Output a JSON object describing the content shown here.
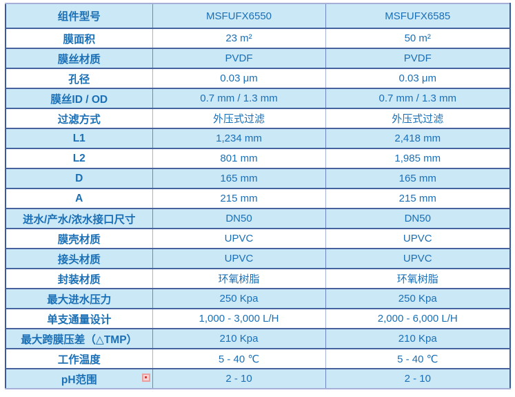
{
  "theme": {
    "text": "#1a6fb5",
    "rowblue": "#cbe8f7",
    "rowwhite": "#ffffff",
    "hborder": "#46629e",
    "vborder_white": "#a6b0d8",
    "vborder_blue": "#6e86c2",
    "outer_side": "#3a5aa0",
    "outer_topbottom": "#a4aed6",
    "icon_border": "#eb9f9f",
    "icon_bg": "#f6d2d2",
    "icon_dot": "#c4403e"
  },
  "icons": {
    "anchor_marker": "image-anchor-icon"
  },
  "table": {
    "rows": [
      {
        "label": "组件型号",
        "values": [
          "MSFUFX6550",
          "MSFUFX6585"
        ]
      },
      {
        "label": "膜面积",
        "values": [
          "23 m²",
          "50 m²"
        ]
      },
      {
        "label": "膜丝材质",
        "values": [
          "PVDF",
          "PVDF"
        ]
      },
      {
        "label": "孔径",
        "values": [
          "0.03 μm",
          "0.03 μm"
        ]
      },
      {
        "label": "膜丝ID / OD",
        "values": [
          "0.7 mm / 1.3 mm",
          "0.7 mm / 1.3 mm"
        ]
      },
      {
        "label": "过滤方式",
        "values": [
          "外压式过滤",
          "外压式过滤"
        ]
      },
      {
        "label": "L1",
        "values": [
          "1,234 mm",
          "2,418 mm"
        ]
      },
      {
        "label": "L2",
        "values": [
          "801 mm",
          "1,985 mm"
        ]
      },
      {
        "label": "D",
        "values": [
          "165 mm",
          "165 mm"
        ]
      },
      {
        "label": "A",
        "values": [
          "215 mm",
          "215 mm"
        ]
      },
      {
        "label": "进水/产水/浓水接口尺寸",
        "values": [
          "DN50",
          "DN50"
        ]
      },
      {
        "label": "膜壳材质",
        "values": [
          "UPVC",
          "UPVC"
        ]
      },
      {
        "label": "接头材质",
        "values": [
          "UPVC",
          "UPVC"
        ]
      },
      {
        "label": "封装材质",
        "values": [
          "环氧树脂",
          "环氧树脂"
        ]
      },
      {
        "label": "最大进水压力",
        "values": [
          "250 Kpa",
          "250 Kpa"
        ]
      },
      {
        "label": "单支通量设计",
        "values": [
          "1,000 - 3,000 L/H",
          "2,000 - 6,000 L/H"
        ]
      },
      {
        "label": "最大跨膜压差（△TMP）",
        "values": [
          "210 Kpa",
          "210 Kpa"
        ]
      },
      {
        "label": "工作温度",
        "values": [
          "5 - 40 ℃",
          "5 - 40 ℃"
        ]
      },
      {
        "label": "pH范围",
        "values": [
          "2 - 10",
          "2 - 10"
        ]
      }
    ]
  }
}
